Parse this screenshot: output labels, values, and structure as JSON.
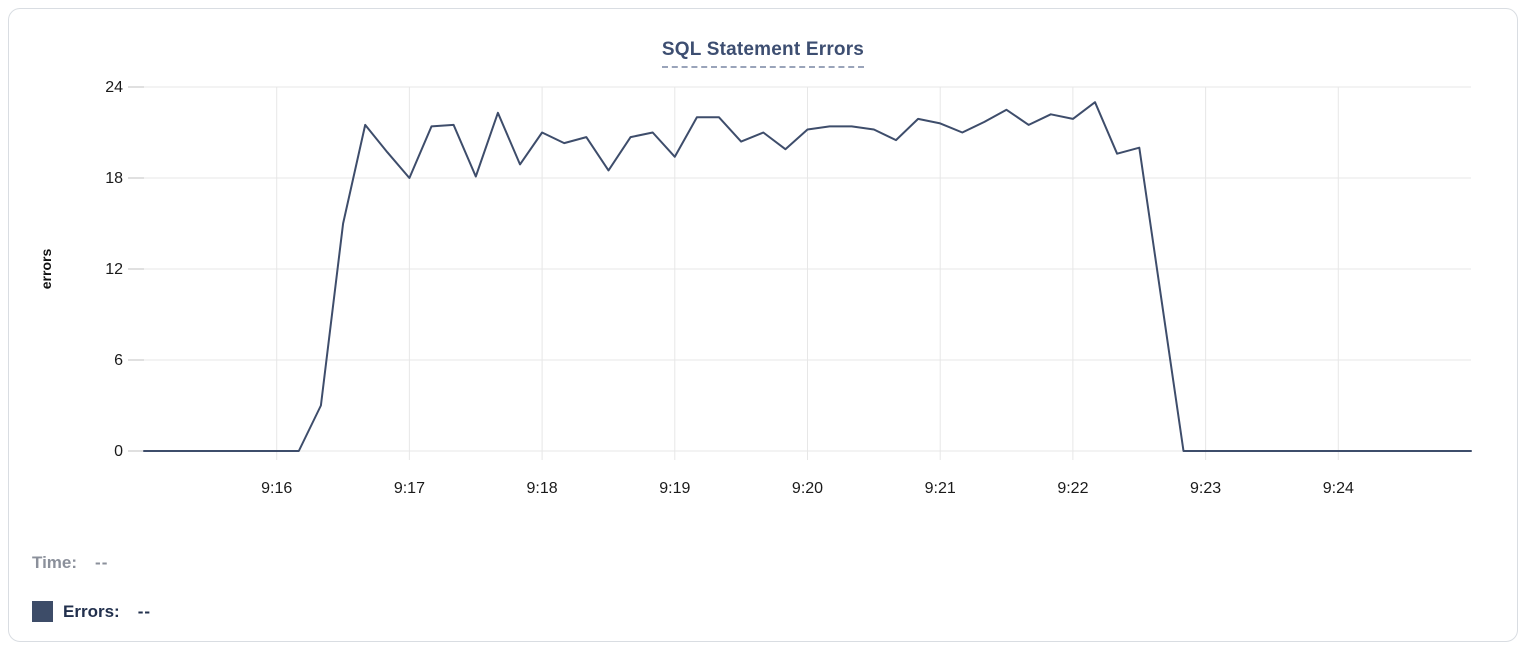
{
  "chart_data": {
    "type": "line",
    "title": "SQL Statement Errors",
    "xlabel": "",
    "ylabel": "errors",
    "ylim": [
      0,
      24
    ],
    "y_ticks": [
      0,
      6,
      12,
      18,
      24
    ],
    "x_tick_labels": [
      "9:16",
      "9:17",
      "9:18",
      "9:19",
      "9:20",
      "9:21",
      "9:22",
      "9:23",
      "9:24"
    ],
    "grid": true,
    "legend_position": "none",
    "line_color": "#3e4d6b",
    "series": [
      {
        "name": "Errors",
        "x": [
          "9:15:00",
          "9:15:10",
          "9:15:20",
          "9:15:30",
          "9:15:40",
          "9:15:50",
          "9:16:00",
          "9:16:10",
          "9:16:20",
          "9:16:30",
          "9:16:40",
          "9:16:50",
          "9:17:00",
          "9:17:10",
          "9:17:20",
          "9:17:30",
          "9:17:40",
          "9:17:50",
          "9:18:00",
          "9:18:10",
          "9:18:20",
          "9:18:30",
          "9:18:40",
          "9:18:50",
          "9:19:00",
          "9:19:10",
          "9:19:20",
          "9:19:30",
          "9:19:40",
          "9:19:50",
          "9:20:00",
          "9:20:10",
          "9:20:20",
          "9:20:30",
          "9:20:40",
          "9:20:50",
          "9:21:00",
          "9:21:10",
          "9:21:20",
          "9:21:30",
          "9:21:40",
          "9:21:50",
          "9:22:00",
          "9:22:10",
          "9:22:20",
          "9:22:30",
          "9:22:40",
          "9:22:50",
          "9:23:00",
          "9:23:10",
          "9:23:20",
          "9:23:30",
          "9:23:40",
          "9:23:50",
          "9:24:00",
          "9:24:10",
          "9:24:20",
          "9:24:30",
          "9:24:40",
          "9:24:50",
          "9:25:00"
        ],
        "values": [
          0,
          0,
          0,
          0,
          0,
          0,
          0,
          0,
          3,
          15,
          21.5,
          19.7,
          18,
          21.4,
          21.5,
          18.1,
          22.3,
          18.9,
          21,
          20.3,
          20.7,
          18.5,
          20.7,
          21,
          19.4,
          22,
          22,
          20.4,
          21,
          19.9,
          21.2,
          21.4,
          21.4,
          21.2,
          20.5,
          21.9,
          21.6,
          21,
          21.7,
          22.5,
          21.5,
          22.2,
          21.9,
          23,
          19.6,
          20,
          10,
          0,
          0,
          0,
          0,
          0,
          0,
          0,
          0,
          0,
          0,
          0,
          0,
          0,
          0
        ]
      }
    ]
  },
  "tooltip": {
    "time_label": "Time:",
    "time_value": "--",
    "errors_label": "Errors:",
    "errors_value": "--",
    "swatch_color": "#3d4c68"
  },
  "colors": {
    "line": "#3e4d6b",
    "title": "#3d4e71",
    "grid": "#e7e7e7",
    "tick": "#d6d6d6",
    "axis_text": "#1a1a1a"
  }
}
